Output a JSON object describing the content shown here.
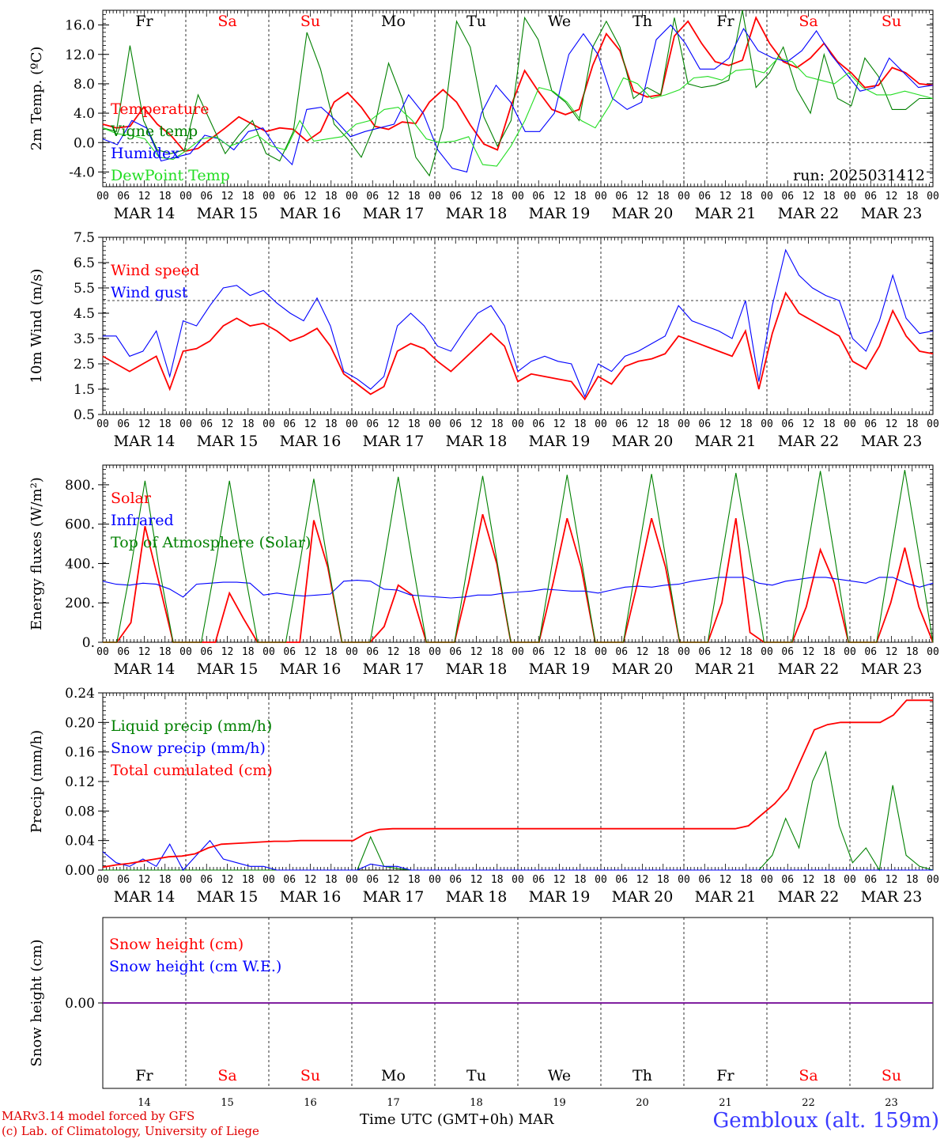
{
  "run_label": "run: 2025031412",
  "days": {
    "dates": [
      "MAR 14",
      "MAR 15",
      "MAR 16",
      "MAR 17",
      "MAR 18",
      "MAR 19",
      "MAR 20",
      "MAR 21",
      "MAR 22",
      "MAR 23"
    ],
    "weekdays": [
      "Fr",
      "Sa",
      "Su",
      "Mo",
      "Tu",
      "We",
      "Th",
      "Fr",
      "Sa",
      "Su"
    ],
    "weekend_flags": [
      false,
      true,
      true,
      false,
      false,
      false,
      false,
      false,
      true,
      true
    ],
    "day_numbers": [
      "14",
      "15",
      "16",
      "17",
      "18",
      "19",
      "20",
      "21",
      "22",
      "23"
    ],
    "hour_ticks": [
      "00",
      "06",
      "12",
      "18"
    ],
    "final_tick": "00"
  },
  "colors": {
    "red": "#ff0000",
    "blue": "#0000ff",
    "green": "#008000",
    "lightgreen": "#22dd22",
    "axis": "#000000",
    "weekend": "#ff0000"
  },
  "chart_data": [
    {
      "type": "line",
      "id": "temp",
      "ylabel": "2m Temp. (ºC)",
      "ylim": [
        -6,
        18
      ],
      "yticks": [
        "16.0",
        "12.0",
        "8.0",
        "4.0",
        "0.0",
        "-4.0"
      ],
      "ytick_values": [
        16,
        12,
        8,
        4,
        0,
        -4
      ],
      "ref_line": 0,
      "x": "hours since MAR 14 00 UTC (3-hourly)",
      "series": [
        {
          "name": "Temperature",
          "color": "#ff0000",
          "values": [
            2.5,
            2.0,
            2.2,
            4.8,
            2.5,
            1.0,
            -1.2,
            -0.8,
            0.6,
            2.0,
            3.5,
            2.5,
            1.5,
            2.0,
            1.8,
            0.2,
            1.5,
            5.5,
            6.8,
            4.8,
            2.2,
            1.8,
            2.8,
            2.6,
            5.5,
            7.2,
            5.5,
            2.4,
            -0.2,
            -1.0,
            5.0,
            9.8,
            7.0,
            4.5,
            3.8,
            4.5,
            10.5,
            14.8,
            12.5,
            7.0,
            6.2,
            6.5,
            14.5,
            16.5,
            13.5,
            11.0,
            10.5,
            11.2,
            17.0,
            13.5,
            11.0,
            10.2,
            11.5,
            13.5,
            11.0,
            9.5,
            7.5,
            7.8,
            10.2,
            9.5,
            8.0,
            7.8
          ]
        },
        {
          "name": "Vigne temp",
          "color": "#008000",
          "values": [
            2.0,
            1.5,
            13.2,
            3.0,
            -1.0,
            -1.5,
            -1.0,
            6.5,
            2.5,
            -1.5,
            1.0,
            3.0,
            -1.5,
            -2.5,
            1.5,
            15.0,
            10.0,
            2.5,
            0.5,
            -2.0,
            2.5,
            10.8,
            6.0,
            -2.0,
            -4.5,
            2.0,
            16.5,
            13.0,
            3.5,
            -0.5,
            3.0,
            17.0,
            14.0,
            7.0,
            5.5,
            3.0,
            13.0,
            16.5,
            13.0,
            6.0,
            7.5,
            6.5,
            17.0,
            8.0,
            7.5,
            7.8,
            8.5,
            18.0,
            7.5,
            9.5,
            13.0,
            7.2,
            4.0,
            12.0,
            6.0,
            5.0,
            11.5,
            9.0,
            4.5,
            4.5,
            6.0,
            6.0
          ]
        },
        {
          "name": "Humidex",
          "color": "#0000ff",
          "values": [
            0.5,
            -0.3,
            3.0,
            2.0,
            -2.5,
            -2.0,
            -1.5,
            1.0,
            0.5,
            -1.0,
            1.5,
            2.0,
            -1.0,
            -3.0,
            4.5,
            4.8,
            3.0,
            0.8,
            1.5,
            2.0,
            2.5,
            6.5,
            4.0,
            -1.0,
            -3.5,
            -4.0,
            4.0,
            7.8,
            5.5,
            1.5,
            1.5,
            4.0,
            12.0,
            14.8,
            12.0,
            6.0,
            4.5,
            5.5,
            14.0,
            16.0,
            13.5,
            10.0,
            10.0,
            11.5,
            15.5,
            12.5,
            11.5,
            11.0,
            12.5,
            15.2,
            12.0,
            9.5,
            7.0,
            7.5,
            11.5,
            9.5,
            7.5,
            7.8
          ]
        },
        {
          "name": "DewPoint Temp",
          "color": "#22dd22",
          "values": [
            2.0,
            1.2,
            1.0,
            0.5,
            -2.0,
            -2.3,
            -1.0,
            0.5,
            0.8,
            -0.5,
            0.2,
            1.0,
            -0.5,
            -1.0,
            3.0,
            0.2,
            0.5,
            0.8,
            2.5,
            3.0,
            4.5,
            4.8,
            3.0,
            0.5,
            0.0,
            0.2,
            0.8,
            -3.0,
            -3.2,
            -0.5,
            3.0,
            7.5,
            7.0,
            5.5,
            3.0,
            2.0,
            5.0,
            8.8,
            8.0,
            6.0,
            6.5,
            7.2,
            8.8,
            9.0,
            8.5,
            9.8,
            10.0,
            9.5,
            11.5,
            11.0,
            9.0,
            8.5,
            8.0,
            9.5,
            7.5,
            6.5,
            6.5,
            7.0,
            6.5,
            6.0
          ]
        }
      ]
    },
    {
      "type": "line",
      "id": "wind",
      "ylabel": "10m Wind (m/s)",
      "ylim": [
        0.5,
        7.5
      ],
      "yticks": [
        "7.5",
        "6.5",
        "5.5",
        "4.5",
        "3.5",
        "2.5",
        "1.5",
        "0.5"
      ],
      "ytick_values": [
        7.5,
        6.5,
        5.5,
        4.5,
        3.5,
        2.5,
        1.5,
        0.5
      ],
      "ref_line": 5,
      "series": [
        {
          "name": "Wind speed",
          "color": "#ff0000",
          "values": [
            2.8,
            2.5,
            2.2,
            2.5,
            2.8,
            1.5,
            3.0,
            3.1,
            3.4,
            4.0,
            4.3,
            4.0,
            4.1,
            3.8,
            3.4,
            3.6,
            3.9,
            3.2,
            2.1,
            1.7,
            1.3,
            1.6,
            3.0,
            3.3,
            3.1,
            2.6,
            2.2,
            2.7,
            3.2,
            3.7,
            3.2,
            1.8,
            2.1,
            2.0,
            1.9,
            1.8,
            1.1,
            2.0,
            1.7,
            2.4,
            2.6,
            2.7,
            2.9,
            3.6,
            3.4,
            3.2,
            3.0,
            2.8,
            3.8,
            1.5,
            3.7,
            5.3,
            4.5,
            4.2,
            3.9,
            3.6,
            2.6,
            2.3,
            3.2,
            4.6,
            3.6,
            3.0,
            2.9
          ]
        },
        {
          "name": "Wind gust",
          "color": "#0000ff",
          "values": [
            3.6,
            3.6,
            2.8,
            3.0,
            3.8,
            2.0,
            4.2,
            4.0,
            4.8,
            5.5,
            5.6,
            5.2,
            5.4,
            4.9,
            4.5,
            4.2,
            5.1,
            4.0,
            2.2,
            1.9,
            1.5,
            2.0,
            4.0,
            4.5,
            4.0,
            3.2,
            3.0,
            3.8,
            4.5,
            4.8,
            4.0,
            2.2,
            2.6,
            2.8,
            2.6,
            2.5,
            1.2,
            2.5,
            2.2,
            2.8,
            3.0,
            3.3,
            3.6,
            4.8,
            4.2,
            4.0,
            3.8,
            3.5,
            5.0,
            1.8,
            4.8,
            7.0,
            6.0,
            5.5,
            5.2,
            5.0,
            3.5,
            3.0,
            4.2,
            6.0,
            4.3,
            3.7,
            3.8
          ]
        }
      ]
    },
    {
      "type": "line",
      "id": "energy",
      "ylabel": "Energy fluxes (W/m²)",
      "ylim": [
        0,
        900
      ],
      "yticks": [
        "800.",
        "600.",
        "400.",
        "200.",
        "0."
      ],
      "ytick_values": [
        800,
        600,
        400,
        200,
        0
      ],
      "series": [
        {
          "name": "Solar",
          "color": "#ff0000",
          "values": [
            0,
            0,
            100,
            590,
            300,
            0,
            0,
            0,
            0,
            250,
            120,
            0,
            0,
            0,
            0,
            620,
            380,
            0,
            0,
            0,
            80,
            290,
            240,
            0,
            0,
            0,
            300,
            650,
            400,
            0,
            0,
            0,
            300,
            630,
            380,
            0,
            0,
            0,
            300,
            630,
            380,
            0,
            0,
            0,
            200,
            630,
            50,
            0,
            0,
            0,
            180,
            470,
            300,
            0,
            0,
            0,
            200,
            480,
            180,
            0
          ]
        },
        {
          "name": "Infrared",
          "color": "#0000ff",
          "values": [
            310,
            295,
            290,
            300,
            295,
            270,
            230,
            295,
            300,
            305,
            305,
            300,
            240,
            250,
            240,
            235,
            240,
            245,
            310,
            315,
            310,
            270,
            265,
            240,
            235,
            230,
            225,
            230,
            240,
            240,
            250,
            255,
            260,
            270,
            265,
            260,
            260,
            250,
            265,
            280,
            285,
            280,
            290,
            295,
            310,
            320,
            330,
            330,
            330,
            300,
            290,
            310,
            320,
            330,
            330,
            320,
            310,
            300,
            330,
            330,
            300,
            280,
            300
          ]
        },
        {
          "name": "Top of Atmosphere (Solar)",
          "color": "#008000",
          "values": [
            0,
            0,
            380,
            820,
            380,
            0,
            0,
            0,
            390,
            820,
            390,
            0,
            0,
            0,
            400,
            830,
            400,
            0,
            0,
            0,
            410,
            840,
            410,
            0,
            0,
            0,
            420,
            845,
            420,
            0,
            0,
            0,
            425,
            850,
            425,
            0,
            0,
            0,
            430,
            855,
            430,
            0,
            0,
            0,
            435,
            860,
            435,
            0,
            0,
            0,
            440,
            870,
            440,
            0,
            0,
            0,
            445,
            875,
            445,
            0
          ]
        }
      ]
    },
    {
      "type": "line",
      "id": "precip",
      "ylabel": "Precip (mm/h)",
      "ylim": [
        0,
        0.24
      ],
      "yticks": [
        "0.24",
        "0.20",
        "0.16",
        "0.12",
        "0.08",
        "0.04",
        "0.00"
      ],
      "ytick_values": [
        0.24,
        0.2,
        0.16,
        0.12,
        0.08,
        0.04,
        0
      ],
      "series": [
        {
          "name": "Liquid precip (mm/h)",
          "color": "#008000",
          "values": [
            0,
            0,
            0,
            0,
            0,
            0,
            0,
            0,
            0,
            0,
            0,
            0,
            0,
            0,
            0,
            0,
            0,
            0,
            0,
            0,
            0.045,
            0.005,
            0.002,
            0,
            0,
            0,
            0,
            0,
            0,
            0,
            0,
            0,
            0,
            0,
            0,
            0,
            0,
            0,
            0,
            0,
            0,
            0,
            0,
            0,
            0,
            0,
            0,
            0,
            0,
            0,
            0.02,
            0.07,
            0.03,
            0.12,
            0.16,
            0.06,
            0.01,
            0.03,
            0,
            0.115,
            0.02,
            0.005,
            0
          ]
        },
        {
          "name": "Snow precip (mm/h)",
          "color": "#0000ff",
          "values": [
            0.025,
            0.01,
            0.005,
            0.015,
            0.005,
            0.035,
            0,
            0.02,
            0.04,
            0.015,
            0.01,
            0.005,
            0.005,
            0,
            0,
            0,
            0,
            0,
            0,
            0,
            0.008,
            0.005,
            0.005,
            0,
            0,
            0,
            0,
            0,
            0,
            0,
            0,
            0,
            0,
            0,
            0,
            0,
            0,
            0,
            0,
            0,
            0,
            0,
            0,
            0,
            0,
            0,
            0,
            0,
            0,
            0,
            0,
            0,
            0,
            0,
            0,
            0,
            0,
            0,
            0,
            0,
            0,
            0,
            0
          ]
        },
        {
          "name": "Total cumulated (cm)",
          "color": "#ff0000",
          "values": [
            0.004,
            0.007,
            0.009,
            0.012,
            0.015,
            0.018,
            0.019,
            0.022,
            0.03,
            0.035,
            0.036,
            0.037,
            0.038,
            0.039,
            0.039,
            0.04,
            0.04,
            0.04,
            0.04,
            0.04,
            0.05,
            0.055,
            0.056,
            0.056,
            0.056,
            0.056,
            0.056,
            0.056,
            0.056,
            0.056,
            0.056,
            0.056,
            0.056,
            0.056,
            0.056,
            0.056,
            0.056,
            0.056,
            0.056,
            0.056,
            0.056,
            0.056,
            0.056,
            0.056,
            0.056,
            0.056,
            0.056,
            0.056,
            0.056,
            0.06,
            0.075,
            0.09,
            0.11,
            0.15,
            0.19,
            0.197,
            0.2,
            0.2,
            0.2,
            0.2,
            0.21,
            0.23,
            0.23,
            0.23
          ]
        }
      ]
    },
    {
      "type": "line",
      "id": "snow",
      "ylabel": "Snow height (cm)",
      "ylim": [
        -1,
        1
      ],
      "yticks": [
        "0.00"
      ],
      "ytick_values": [
        0
      ],
      "series": [
        {
          "name": "Snow height (cm)",
          "color": "#ff0000",
          "values": [
            0,
            0
          ]
        },
        {
          "name": "Snow height (cm W.E.)",
          "color": "#0000ff",
          "values": [
            0,
            0
          ]
        }
      ]
    }
  ],
  "footer": {
    "model_line": "MARv3.14 model forced by GFS",
    "copyright_line": "(c) Lab. of Climatology, University of Liege",
    "axis_title": "Time UTC (GMT+0h)",
    "axis_month": "MAR",
    "station": "Gembloux (alt. 159m)"
  }
}
